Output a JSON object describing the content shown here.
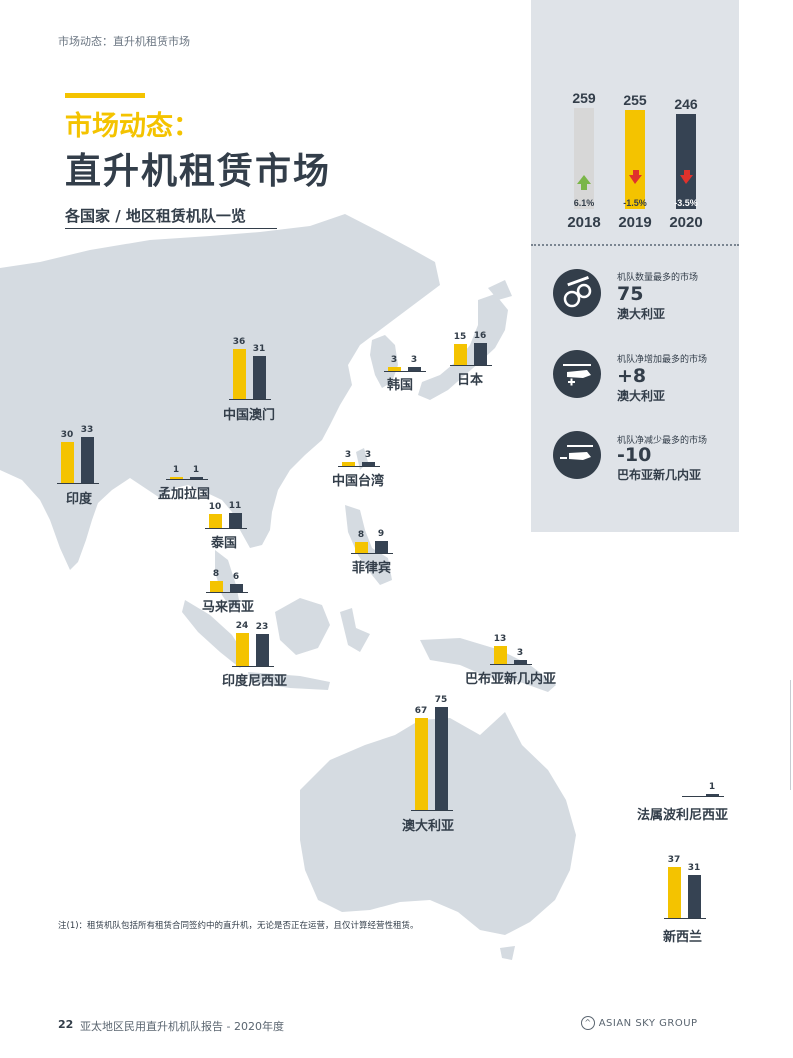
{
  "page": {
    "breadcrumb": "市场动态：直升机租赁市场"
  },
  "header": {
    "title_line1": "市场动态：",
    "title_line2": "直升机租赁市场",
    "subtitle": "各国家 / 地区租赁机队一览"
  },
  "colors": {
    "yellow": "#f4c300",
    "navy": "#364353",
    "grey_bar": "#d7d7d7",
    "up_arrow": "#7ab648",
    "down_arrow": "#e0322c",
    "map": "#d5dbe1"
  },
  "trend": {
    "items": [
      {
        "year": "2018",
        "value": "259",
        "change": "6.1%",
        "direction": "up"
      },
      {
        "year": "2019",
        "value": "255",
        "change": "-1.5%",
        "direction": "down"
      },
      {
        "year": "2020",
        "value": "246",
        "change": "-3.5%",
        "direction": "down"
      }
    ]
  },
  "cards": [
    {
      "title": "机队数量最多的市场",
      "value": "75",
      "sub": "澳大利亚",
      "icon": "helicopter-fleet-icon"
    },
    {
      "title": "机队净增加最多的市场",
      "value": "+8",
      "sub": "澳大利亚",
      "icon": "helicopter-plus-icon"
    },
    {
      "title": "机队净减少最多的市场",
      "value": "-10",
      "sub": "巴布亚新几内亚",
      "icon": "helicopter-minus-icon"
    }
  ],
  "chart_data": {
    "type": "bar",
    "series": [
      {
        "color": "#f4c300"
      },
      {
        "color": "#364353"
      }
    ],
    "categories": [
      "印度",
      "中国澳门",
      "孟加拉国",
      "泰国",
      "马来西亚",
      "印度尼西亚",
      "中国台湾",
      "韩国",
      "日本",
      "菲律宾",
      "巴布亚新几内亚",
      "澳大利亚",
      "法属波利尼西亚",
      "新西兰"
    ],
    "values_a": [
      30,
      36,
      1,
      10,
      8,
      24,
      3,
      3,
      15,
      8,
      13,
      67,
      null,
      37
    ],
    "values_b": [
      33,
      31,
      1,
      11,
      6,
      23,
      3,
      3,
      16,
      9,
      3,
      75,
      1,
      31
    ],
    "value_labels_a": [
      "30",
      "36",
      "1",
      "10",
      "8",
      "24",
      "3",
      "3",
      "15",
      "8",
      "13",
      "67",
      "",
      "37"
    ],
    "value_labels_b": [
      "33",
      "31",
      "1",
      "11",
      "6",
      "23",
      "3",
      "3",
      "16",
      "9",
      "3",
      "75",
      "1",
      "31"
    ],
    "title": "各国家 / 地区租赁机队一览"
  },
  "footnote": "注(1)：租赁机队包括所有租赁合同签约中的直升机，无论是否正在运营，且仅计算经营性租赁。",
  "footer": {
    "page_number": "22",
    "report_title": "亚太地区民用直升机机队报告 - 2020年度",
    "logo_text": "ASIAN SKY GROUP"
  }
}
